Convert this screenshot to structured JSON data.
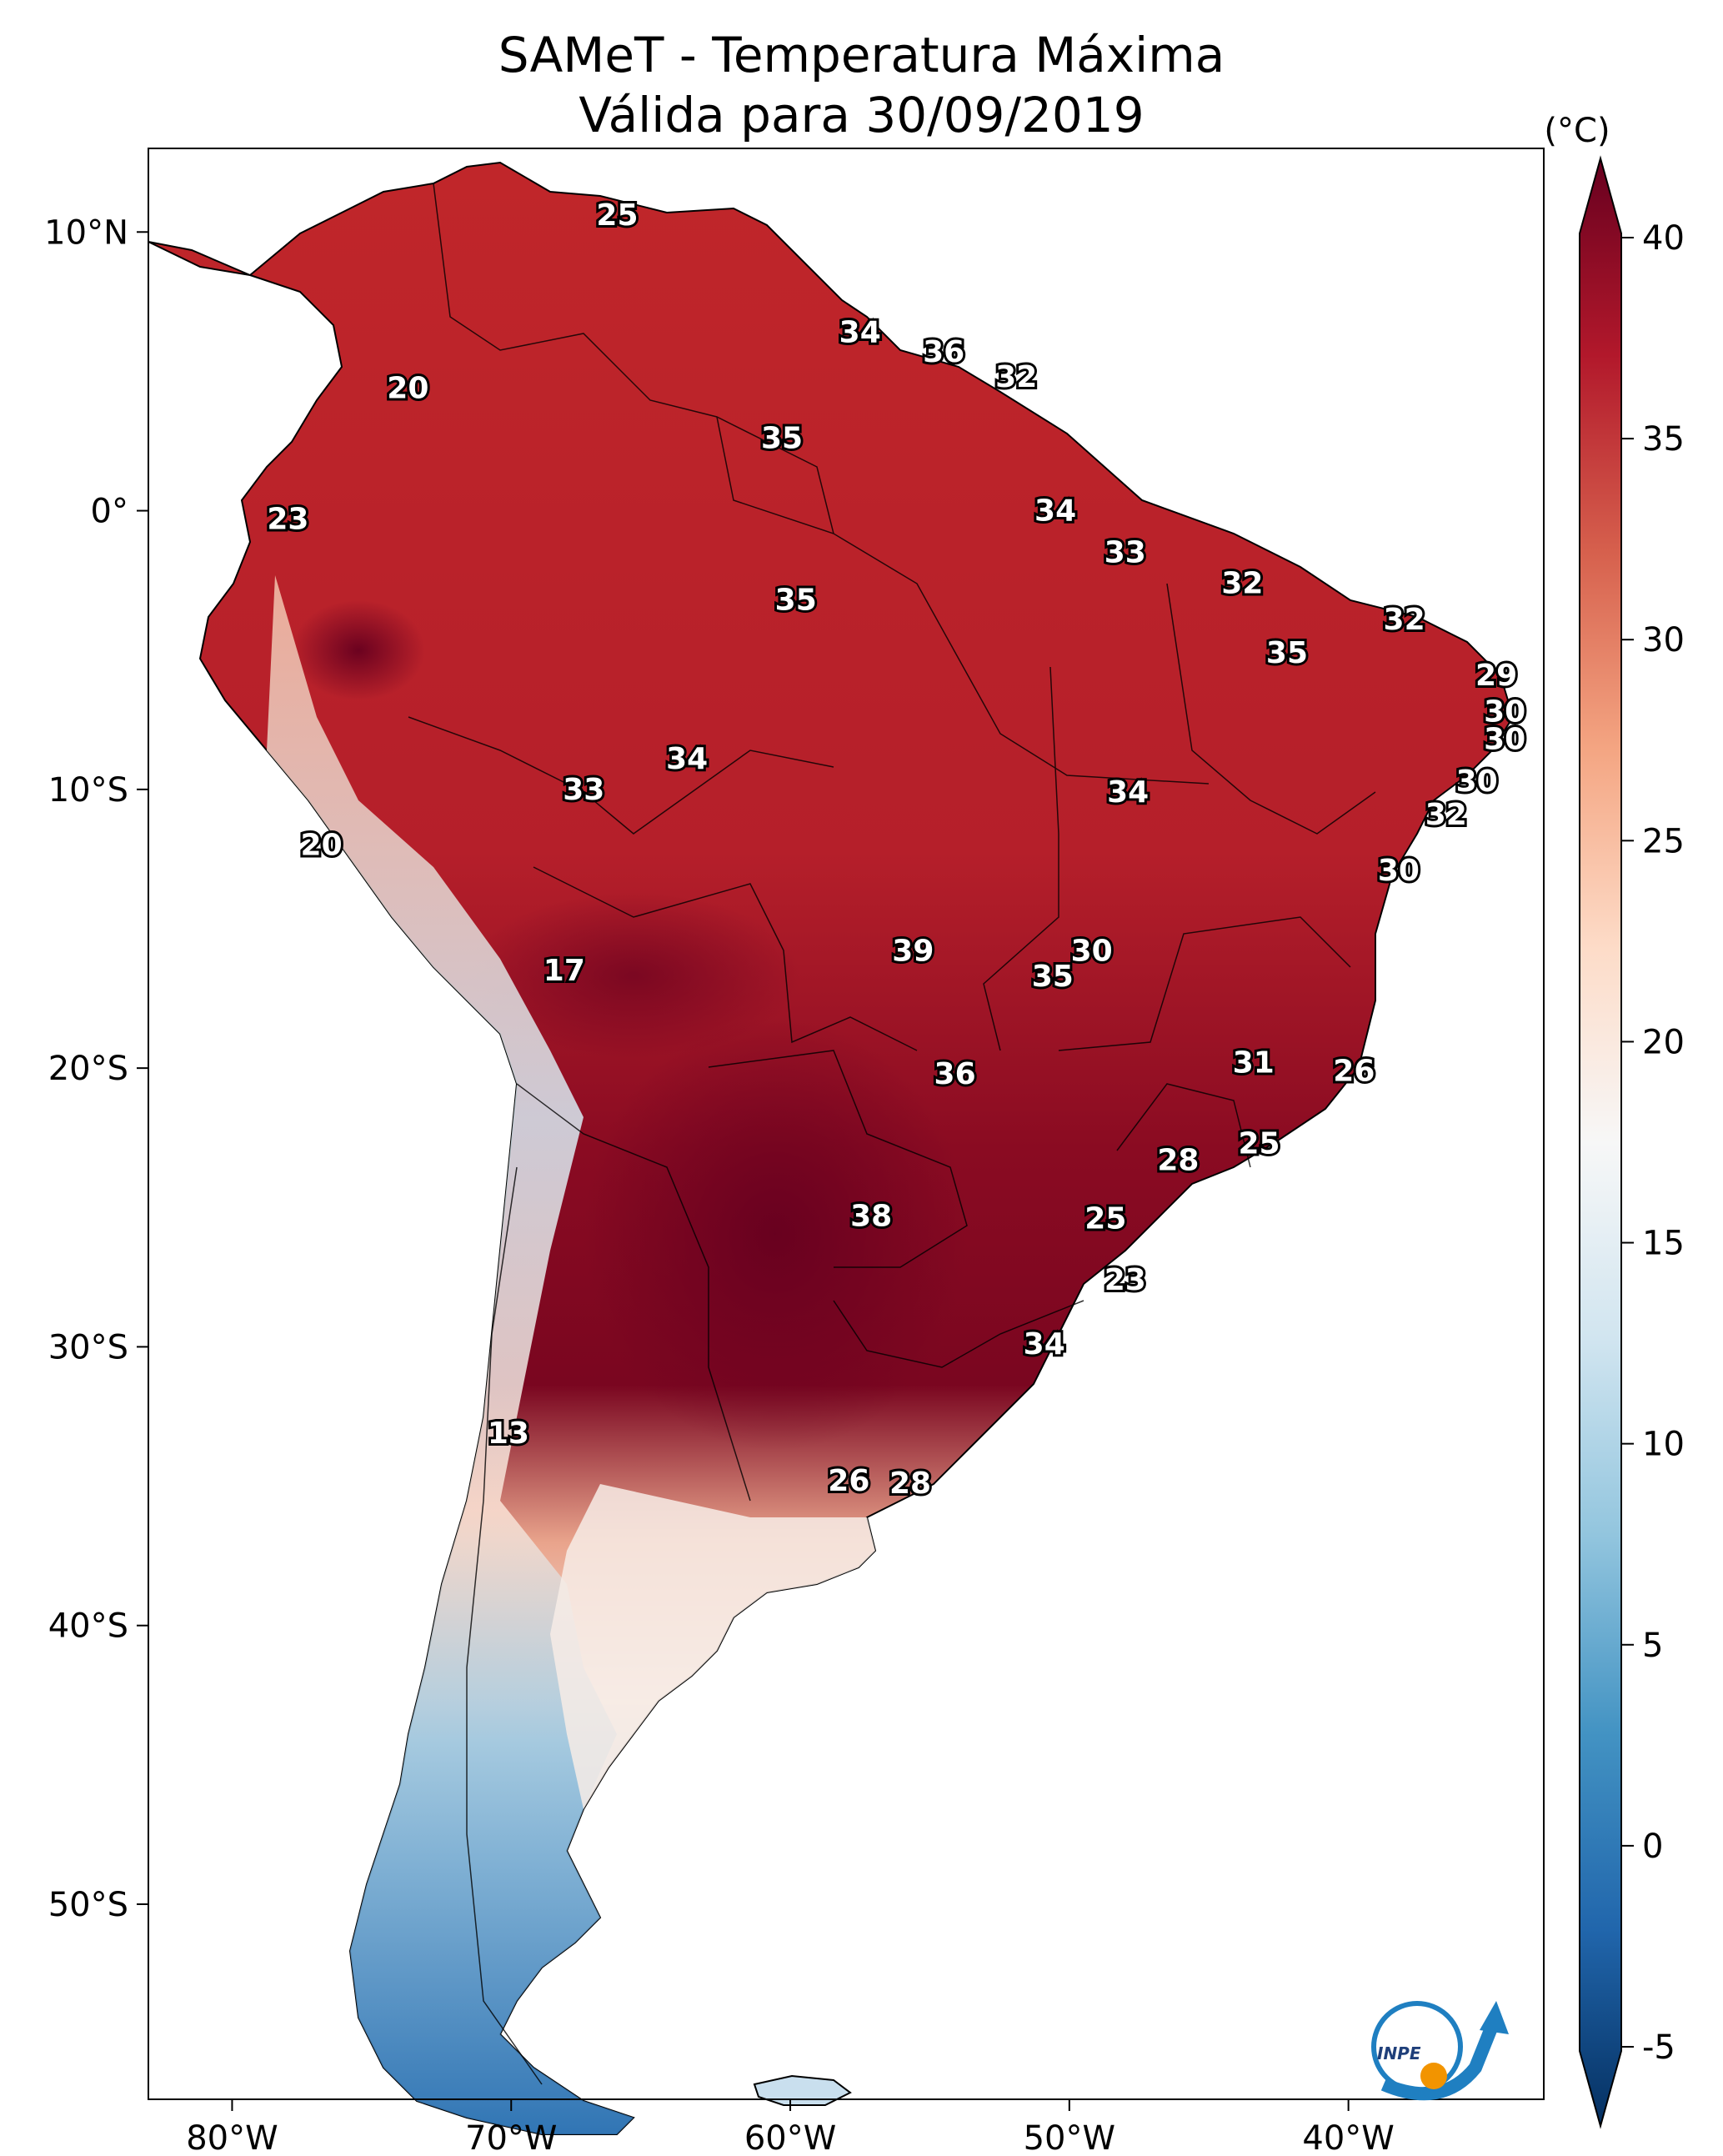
{
  "title": "SAMeT - Temperatura Máxima\nVálida para 30/09/2019",
  "colorbar": {
    "unit": "(°C)",
    "ticks": [
      "40",
      "35",
      "30",
      "25",
      "20",
      "15",
      "10",
      "5",
      "0",
      "-5"
    ],
    "stops": [
      "#053061",
      "#2166ac",
      "#4393c3",
      "#92c5de",
      "#d1e5f0",
      "#f7f7f7",
      "#fddbc7",
      "#f4a582",
      "#d6604d",
      "#b2182b",
      "#67001f"
    ]
  },
  "axes": {
    "lat_labels": [
      "10°N",
      "0°",
      "10°S",
      "20°S",
      "30°S",
      "40°S",
      "50°S"
    ],
    "lon_labels": [
      "80°W",
      "70°W",
      "60°W",
      "50°W",
      "40°W"
    ]
  },
  "logo_text": "INPE",
  "icons": {
    "logo": "inpe-logo-icon"
  },
  "contour_labels": [
    {
      "t": "25",
      "lon": -66.2,
      "lat": 10.6
    },
    {
      "t": "34",
      "lon": -57.5,
      "lat": 6.4
    },
    {
      "t": "36",
      "lon": -54.5,
      "lat": 5.7
    },
    {
      "t": "32",
      "lon": -51.9,
      "lat": 4.8
    },
    {
      "t": "20",
      "lon": -73.7,
      "lat": 4.4
    },
    {
      "t": "35",
      "lon": -60.3,
      "lat": 2.6
    },
    {
      "t": "23",
      "lon": -78.0,
      "lat": -0.3
    },
    {
      "t": "34",
      "lon": -50.5,
      "lat": 0.0
    },
    {
      "t": "33",
      "lon": -48.0,
      "lat": -1.5
    },
    {
      "t": "32",
      "lon": -43.8,
      "lat": -2.6
    },
    {
      "t": "32",
      "lon": -38.0,
      "lat": -3.9
    },
    {
      "t": "35",
      "lon": -59.8,
      "lat": -3.2
    },
    {
      "t": "35",
      "lon": -42.2,
      "lat": -5.1
    },
    {
      "t": "29",
      "lon": -34.7,
      "lat": -5.9
    },
    {
      "t": "30",
      "lon": -34.4,
      "lat": -7.2
    },
    {
      "t": "30",
      "lon": -34.4,
      "lat": -8.2
    },
    {
      "t": "34",
      "lon": -63.7,
      "lat": -8.9
    },
    {
      "t": "33",
      "lon": -67.4,
      "lat": -10.0
    },
    {
      "t": "34",
      "lon": -47.9,
      "lat": -10.1
    },
    {
      "t": "30",
      "lon": -35.4,
      "lat": -9.7
    },
    {
      "t": "32",
      "lon": -36.5,
      "lat": -10.9
    },
    {
      "t": "20",
      "lon": -76.8,
      "lat": -12.0
    },
    {
      "t": "30",
      "lon": -38.2,
      "lat": -12.9
    },
    {
      "t": "39",
      "lon": -55.6,
      "lat": -15.8
    },
    {
      "t": "30",
      "lon": -49.2,
      "lat": -15.8
    },
    {
      "t": "35",
      "lon": -50.6,
      "lat": -16.7
    },
    {
      "t": "17",
      "lon": -68.1,
      "lat": -16.5
    },
    {
      "t": "31",
      "lon": -43.4,
      "lat": -19.8
    },
    {
      "t": "26",
      "lon": -39.8,
      "lat": -20.1
    },
    {
      "t": "36",
      "lon": -54.1,
      "lat": -20.2
    },
    {
      "t": "25",
      "lon": -43.2,
      "lat": -22.7
    },
    {
      "t": "28",
      "lon": -46.1,
      "lat": -23.3
    },
    {
      "t": "38",
      "lon": -57.1,
      "lat": -25.3
    },
    {
      "t": "25",
      "lon": -48.7,
      "lat": -25.4
    },
    {
      "t": "23",
      "lon": -48.0,
      "lat": -27.6
    },
    {
      "t": "34",
      "lon": -50.9,
      "lat": -29.9
    },
    {
      "t": "13",
      "lon": -70.1,
      "lat": -33.1
    },
    {
      "t": "26",
      "lon": -57.9,
      "lat": -34.8
    },
    {
      "t": "28",
      "lon": -55.7,
      "lat": -34.9
    }
  ]
}
